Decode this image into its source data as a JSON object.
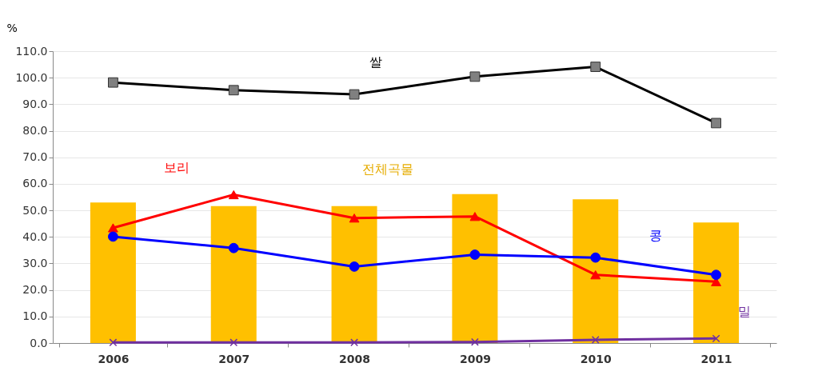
{
  "chart_data": {
    "type": "line",
    "ylabel": "%",
    "categories": [
      "2006",
      "2007",
      "2008",
      "2009",
      "2010",
      "2011"
    ],
    "series": [
      {
        "name": "전체곡물",
        "type": "bar",
        "color": "#ffc000",
        "values": [
          53.0,
          51.6,
          51.6,
          56.1,
          54.2,
          45.4
        ]
      },
      {
        "name": "쌀",
        "color": "#000000",
        "marker": "square",
        "values": [
          98.2,
          95.3,
          93.7,
          100.4,
          104.1,
          82.9
        ]
      },
      {
        "name": "보리",
        "color": "#ff0000",
        "marker": "triangle",
        "values": [
          43.4,
          55.9,
          47.1,
          47.7,
          25.7,
          23.1
        ]
      },
      {
        "name": "콩",
        "color": "#0000ff",
        "marker": "circle",
        "values": [
          40.1,
          35.8,
          28.8,
          33.3,
          32.2,
          25.7
        ]
      },
      {
        "name": "밀",
        "color": "#7030a0",
        "marker": "cross",
        "values": [
          0.2,
          0.2,
          0.2,
          0.4,
          1.2,
          1.7
        ]
      }
    ],
    "ylim": [
      0,
      110
    ],
    "yticks": [
      {
        "value": 0,
        "label": "0.0"
      },
      {
        "value": 10,
        "label": "10.0"
      },
      {
        "value": 20,
        "label": "20.0"
      },
      {
        "value": 30,
        "label": "30.0"
      },
      {
        "value": 40,
        "label": "40.0"
      },
      {
        "value": 50,
        "label": "50.0"
      },
      {
        "value": 60,
        "label": "60.0"
      },
      {
        "value": 70,
        "label": "70.0"
      },
      {
        "value": 80,
        "label": "80.0"
      },
      {
        "value": 90,
        "label": "90.0"
      },
      {
        "value": 100,
        "label": "100.0"
      },
      {
        "value": 110,
        "label": "110.0"
      }
    ],
    "grid": "y"
  }
}
